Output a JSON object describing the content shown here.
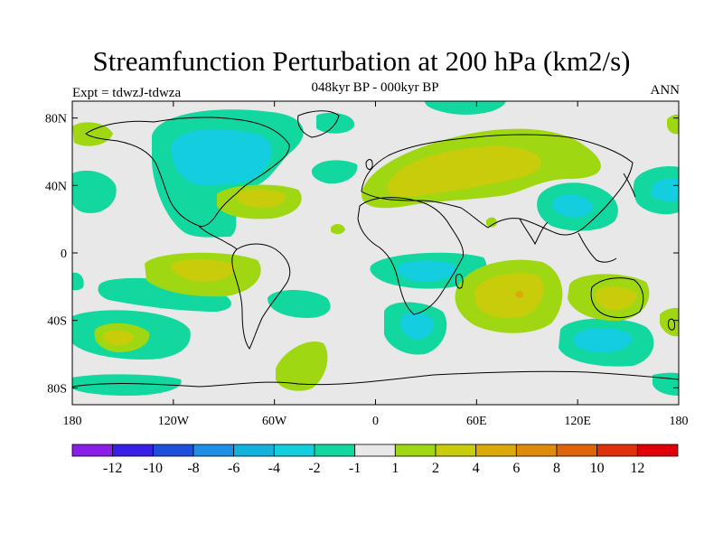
{
  "title": "Streamfunction Perturbation at 200 hPa (km2/s)",
  "subtitle": "048kyr BP - 000kyr BP",
  "left_label": "Expt = tdwzJ-tdwza",
  "right_label": "ANN",
  "lat_ticks": [
    "80N",
    "40N",
    "0",
    "40S",
    "80S"
  ],
  "lon_ticks": [
    "180",
    "120W",
    "60W",
    "0",
    "60E",
    "120E",
    "180"
  ],
  "colorbar": {
    "colors": [
      "#8a1ee6",
      "#3a1fe6",
      "#1e4fdc",
      "#1f8ee6",
      "#12b2dc",
      "#12cede",
      "#12d79e",
      "#e8e8e8",
      "#9fd812",
      "#c9cc0a",
      "#dca90a",
      "#e08a0a",
      "#e0640a",
      "#e0320a",
      "#e0000a"
    ],
    "labels": [
      "-12",
      "-10",
      "-8",
      "-6",
      "-4",
      "-2",
      "-1",
      "1",
      "2",
      "4",
      "6",
      "8",
      "10",
      "12"
    ]
  },
  "field_colors": {
    "background": "#e8e8e8",
    "neg1": "#12d79e",
    "neg2": "#12cede",
    "pos1": "#9fd812",
    "pos2": "#c9cc0a",
    "pos3": "#dca90a"
  }
}
